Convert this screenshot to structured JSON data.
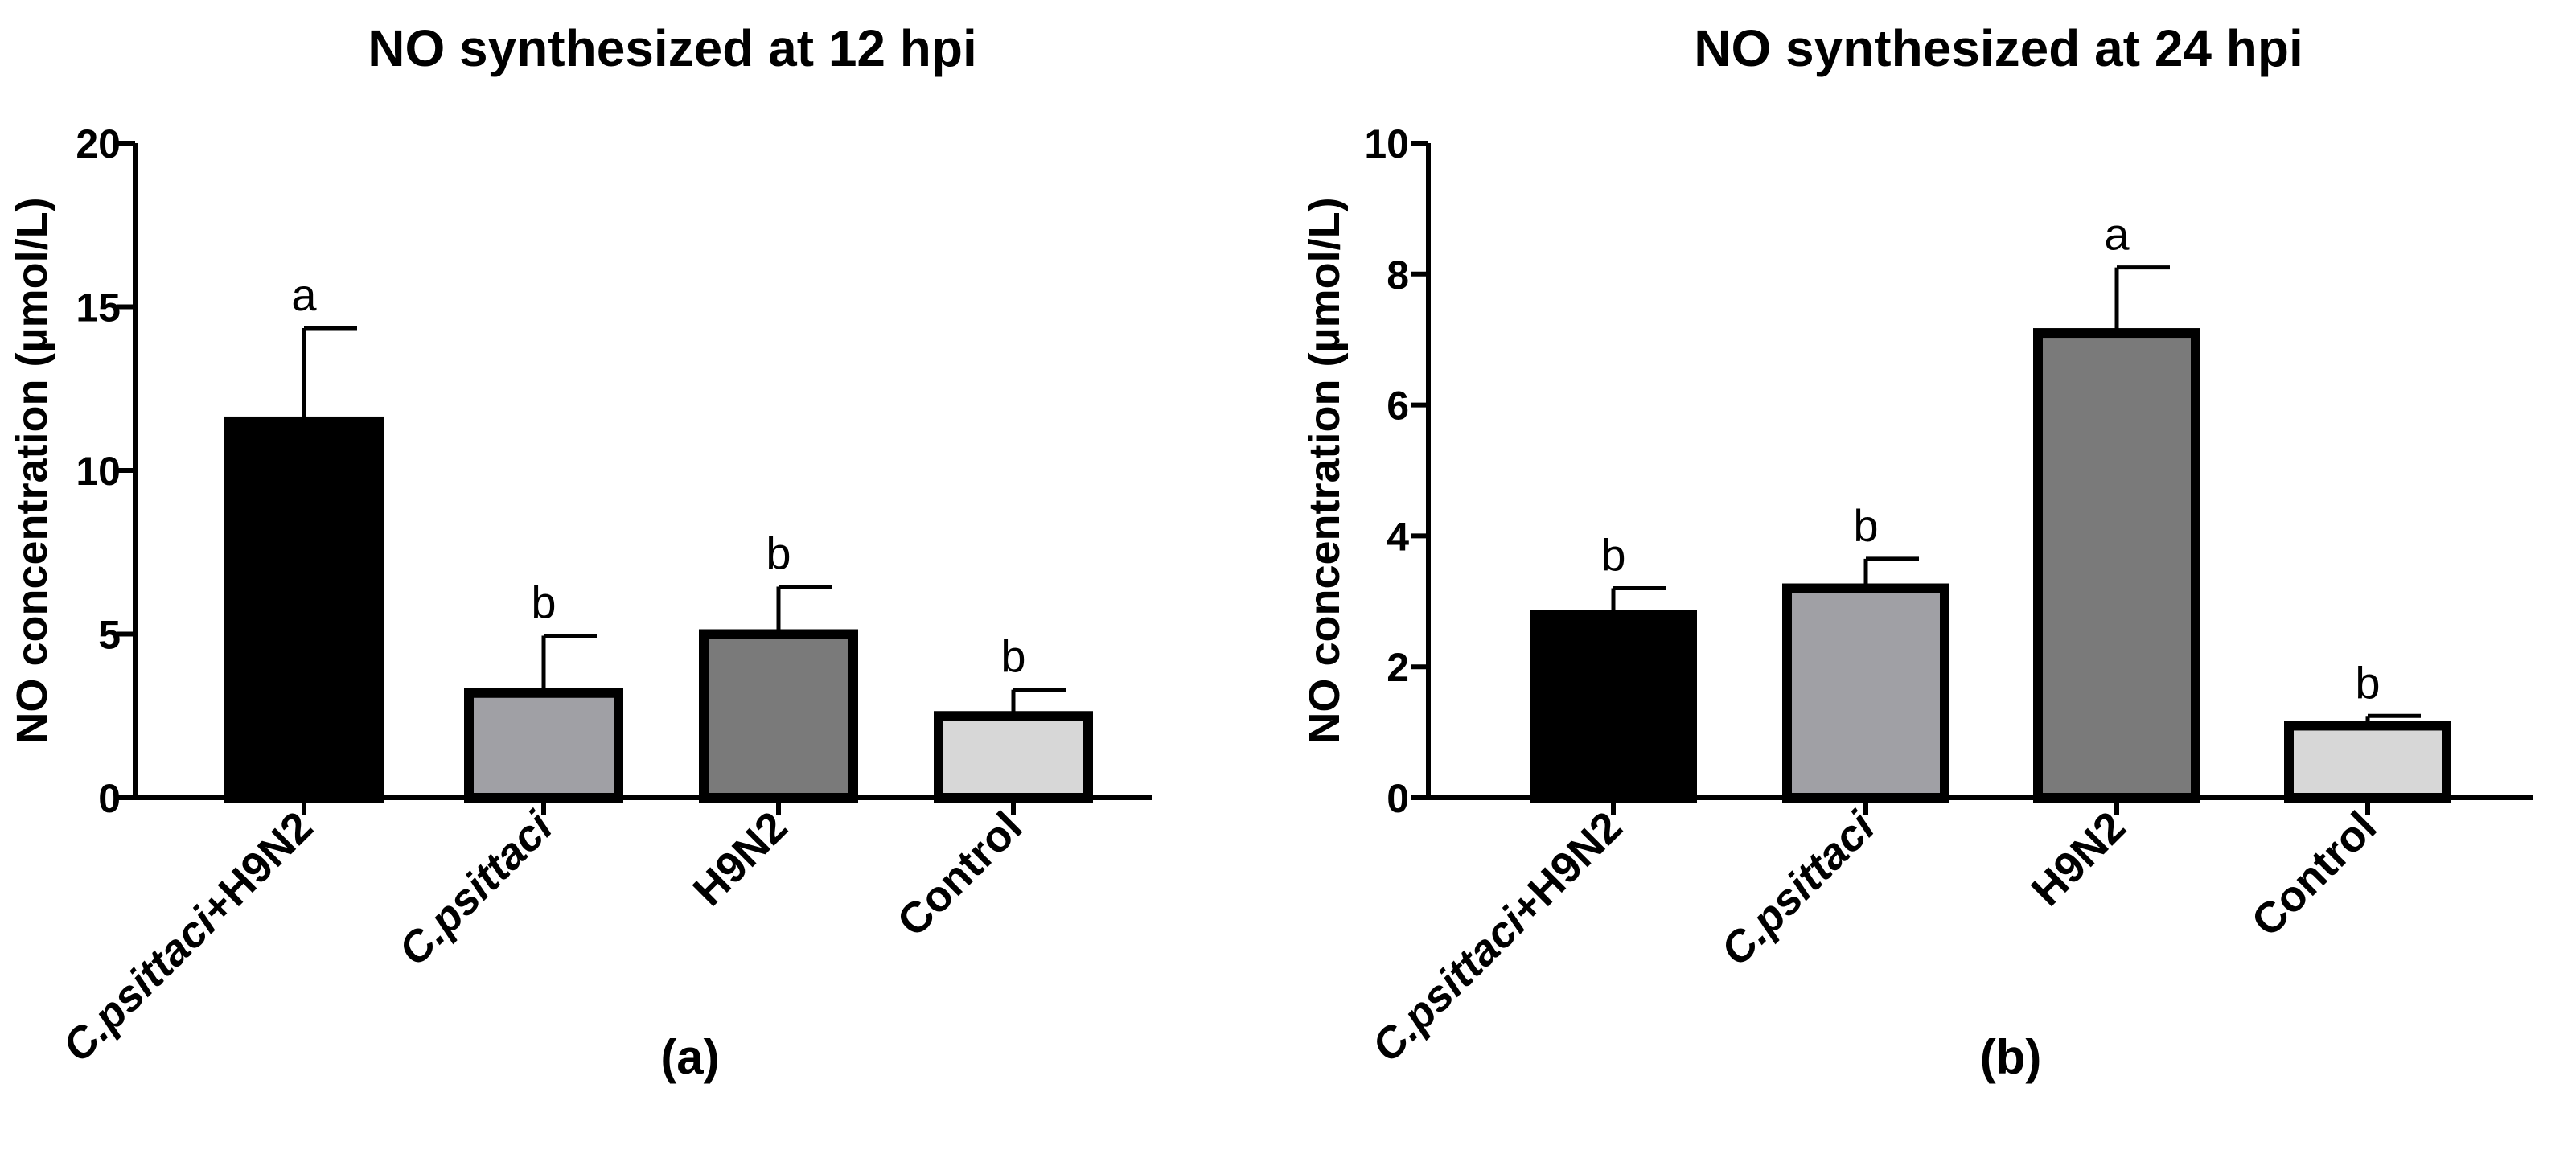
{
  "chart_data": [
    {
      "type": "bar",
      "title": "NO synthesized at 12 hpi",
      "ylabel": "NO concentration (µmol/L)",
      "xlabel": "",
      "panel_label": "(a)",
      "ylim": [
        0,
        20
      ],
      "yticks": [
        0,
        5,
        10,
        15,
        20
      ],
      "categories": [
        {
          "label": "C.psittaci+H9N2",
          "italic_part": "C.psittaci",
          "rest": "+H9N2"
        },
        {
          "label": "C.psittaci",
          "italic_part": "C.psittaci",
          "rest": ""
        },
        {
          "label": "H9N2",
          "italic_part": "",
          "rest": "H9N2"
        },
        {
          "label": "Control",
          "italic_part": "",
          "rest": "Control"
        }
      ],
      "values": [
        11.5,
        3.2,
        5.0,
        2.5
      ],
      "errors": [
        2.85,
        1.75,
        1.45,
        0.8
      ],
      "significance": [
        "a",
        "b",
        "b",
        "b"
      ],
      "bar_colors": [
        "#000000",
        "#a0a0a5",
        "#7a7a7a",
        "#d7d7d7"
      ]
    },
    {
      "type": "bar",
      "title": "NO synthesized at 24 hpi",
      "ylabel": "NO concentration (µmol/L)",
      "xlabel": "",
      "panel_label": "(b)",
      "ylim": [
        0,
        10
      ],
      "yticks": [
        0,
        2,
        4,
        6,
        8,
        10
      ],
      "categories": [
        {
          "label": "C.psittaci+H9N2",
          "italic_part": "C.psittaci",
          "rest": "+H9N2"
        },
        {
          "label": "C.psittaci",
          "italic_part": "C.psittaci",
          "rest": ""
        },
        {
          "label": "H9N2",
          "italic_part": "",
          "rest": "H9N2"
        },
        {
          "label": "Control",
          "italic_part": "",
          "rest": "Control"
        }
      ],
      "values": [
        2.8,
        3.2,
        7.1,
        1.1
      ],
      "errors": [
        0.4,
        0.45,
        1.0,
        0.15
      ],
      "significance": [
        "b",
        "b",
        "a",
        "b"
      ],
      "bar_colors": [
        "#000000",
        "#a0a0a5",
        "#7a7a7a",
        "#d7d7d7"
      ]
    }
  ]
}
